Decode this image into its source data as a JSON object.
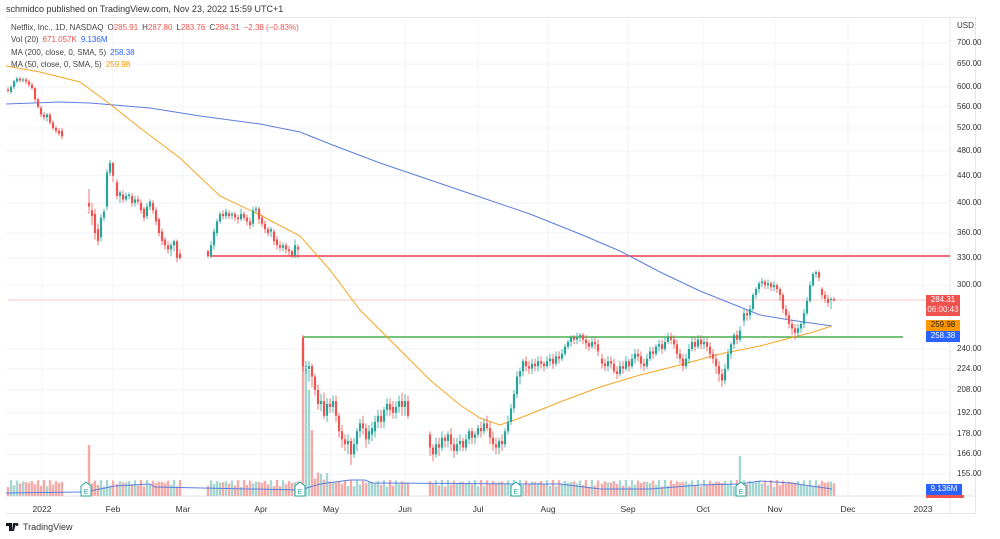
{
  "publisher": "schmidco published on TradingView.com, Nov 23, 2022 15:59 UTC+1",
  "legend": {
    "symbol": "Netflix, Inc., 1D, NASDAQ",
    "o_label": "O",
    "o": "285.91",
    "h_label": "H",
    "h": "287.80",
    "l_label": "L",
    "l": "283.76",
    "c_label": "C",
    "c": "284.31",
    "change": "−2.38 (−0.83%)",
    "vol_label": "Vol (20)",
    "vol": "671.057K",
    "vol_ma": "9.136M",
    "ma200_label": "MA (200, close, 0, SMA, 5)",
    "ma200": "258.38",
    "ma50_label": "MA (50, close, 0, SMA, 5)",
    "ma50": "259.98"
  },
  "price_axis": {
    "currency": "USD",
    "ticks": [
      "700.00",
      "650.00",
      "600.00",
      "560.00",
      "520.00",
      "480.00",
      "440.00",
      "400.00",
      "360.00",
      "330.00",
      "300.00",
      "240.00",
      "224.00",
      "208.00",
      "192.00",
      "178.00",
      "166.00",
      "155.00"
    ]
  },
  "price_labels": {
    "last": "284.31",
    "countdown": "06:00:43",
    "ma50": "259.98",
    "ma200": "258.38",
    "vol_ma": "9.136M"
  },
  "time_axis": [
    "2022",
    "Feb",
    "Mar",
    "Apr",
    "May",
    "Jun",
    "Jul",
    "Aug",
    "Sep",
    "Oct",
    "Nov",
    "Dec",
    "2023"
  ],
  "footer": {
    "brand": "TradingView"
  },
  "colors": {
    "up": "#26a69a",
    "down": "#ef5350",
    "ma200": "#5b7fe0",
    "ma50": "#f5a623",
    "resistance": "#ef3b4a",
    "support": "#4caf50"
  },
  "chart_data": {
    "type": "candlestick",
    "title": "Netflix, Inc., 1D, NASDAQ",
    "ylabel": "USD",
    "yscale": "log",
    "ylim": [
      150,
      720
    ],
    "x": [
      "2022",
      "Feb",
      "Mar",
      "Apr",
      "May",
      "Jun",
      "Jul",
      "Aug",
      "Sep",
      "Oct",
      "Nov",
      "Dec",
      "2023"
    ],
    "horizontal_lines": [
      {
        "name": "resistance",
        "price": 331,
        "from": "Mar 7",
        "color": "#ef3b4a"
      },
      {
        "name": "support",
        "price": 252,
        "from": "Apr 20",
        "color": "#4caf50"
      }
    ],
    "series": [
      {
        "name": "NFLX close (approx, weekly sample)",
        "values": [
          597,
          605,
          590,
          540,
          525,
          510,
          387,
          405,
          395,
          380,
          370,
          345,
          375,
          380,
          390,
          375,
          350,
          340,
          230,
          215,
          185,
          200,
          195,
          175,
          190,
          200,
          185,
          180,
          170,
          180,
          190,
          220,
          225,
          245,
          245,
          235,
          225,
          230,
          240,
          240,
          235,
          225,
          238,
          250,
          265,
          290,
          300,
          295,
          270,
          290,
          300,
          310,
          298,
          284
        ]
      },
      {
        "name": "MA 200",
        "values": [
          560,
          565,
          562,
          555,
          548,
          540,
          528,
          512,
          495,
          472,
          448,
          420,
          390,
          360,
          330,
          305,
          285,
          272,
          262,
          258.38
        ]
      },
      {
        "name": "MA 50",
        "values": [
          650,
          640,
          600,
          540,
          470,
          410,
          380,
          320,
          260,
          210,
          185,
          182,
          190,
          200,
          215,
          228,
          240,
          250,
          259.98
        ]
      }
    ],
    "earnings_markers": [
      "Jan 20",
      "Apr 19",
      "Jul 19",
      "Oct 18"
    ],
    "last": {
      "open": 285.91,
      "high": 287.8,
      "low": 283.76,
      "close": 284.31,
      "change": -2.38,
      "change_pct": -0.83
    },
    "volume": {
      "last": "671.057K",
      "ma20": "9.136M"
    }
  }
}
